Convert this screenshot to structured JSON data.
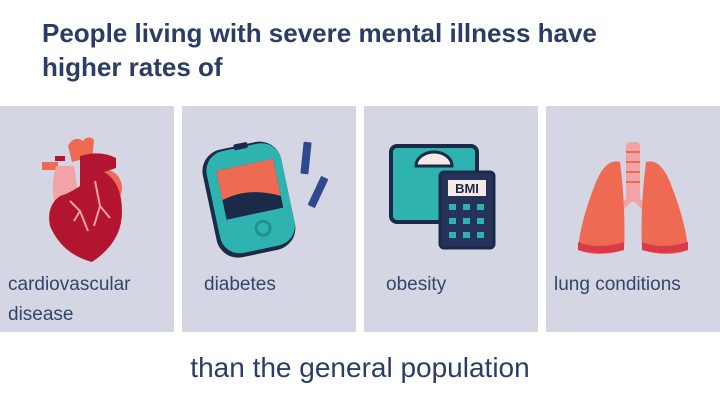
{
  "title": {
    "line1": "People living with severe mental illness have",
    "line2": "higher rates of"
  },
  "panels": [
    {
      "icon": "heart-icon",
      "label_line1": "cardiovascular",
      "label_line2": "disease"
    },
    {
      "icon": "glucose-meter-icon",
      "label_line1": "diabetes"
    },
    {
      "icon": "bmi-scale-icon",
      "label_line1": "obesity",
      "icon_text": "BMI"
    },
    {
      "icon": "lungs-icon",
      "label_line1": "lung conditions"
    }
  ],
  "footer": "than the general population",
  "colors": {
    "heading": "#2b3d66",
    "panel_bg": "#d5d6e4",
    "accent_red": "#ef6a52",
    "accent_teal": "#2fb3b0",
    "dark_red": "#b3142f"
  }
}
